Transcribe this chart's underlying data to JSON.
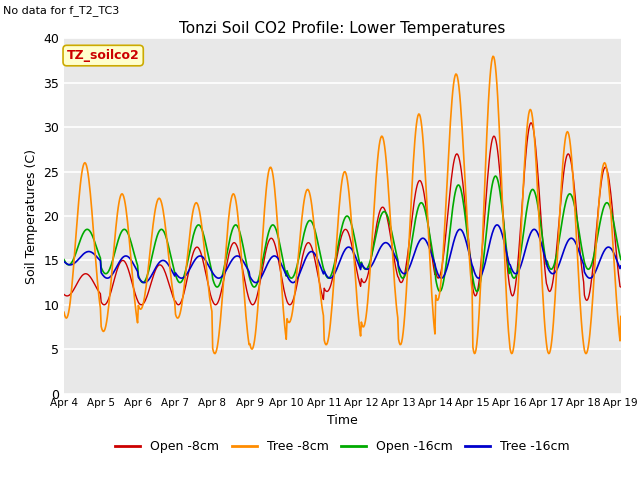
{
  "title": "Tonzi Soil CO2 Profile: Lower Temperatures",
  "subtitle": "No data for f_T2_TC3",
  "ylabel": "Soil Temperatures (C)",
  "xlabel": "Time",
  "ylim": [
    0,
    40
  ],
  "yticks": [
    0,
    5,
    10,
    15,
    20,
    25,
    30,
    35,
    40
  ],
  "xtick_labels": [
    "Apr 4",
    "Apr 5",
    "Apr 6",
    "Apr 7",
    "Apr 8",
    "Apr 9",
    "Apr 10",
    "Apr 11",
    "Apr 12",
    "Apr 13",
    "Apr 14",
    "Apr 15",
    "Apr 16",
    "Apr 17",
    "Apr 18",
    "Apr 19"
  ],
  "legend_labels": [
    "Open -8cm",
    "Tree -8cm",
    "Open -16cm",
    "Tree -16cm"
  ],
  "legend_colors": [
    "#cc0000",
    "#ff8c00",
    "#00aa00",
    "#0000cc"
  ],
  "inset_label": "TZ_soilco2",
  "inset_color": "#cc0000",
  "inset_bg": "#ffffcc",
  "inset_edge": "#ccaa00",
  "bg_color": "#ffffff",
  "plot_bg": "#e8e8e8",
  "grid_color": "#ffffff",
  "n_days": 15,
  "points_per_day": 48
}
